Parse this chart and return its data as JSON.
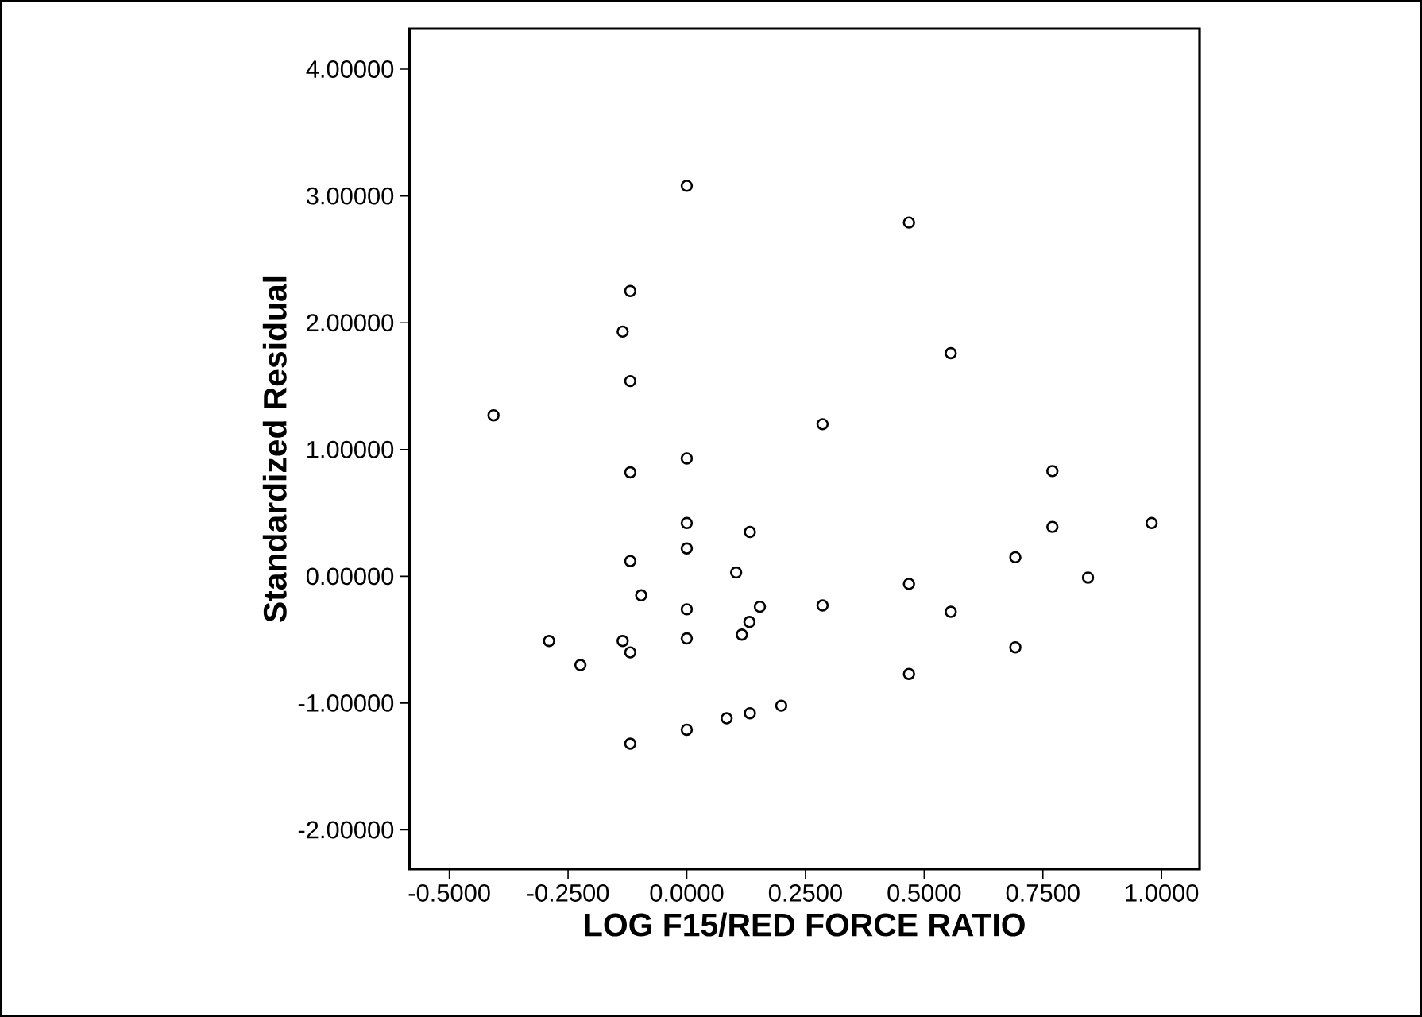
{
  "chart_data": {
    "type": "scatter",
    "xlabel": "LOG F15/RED FORCE RATIO",
    "ylabel": "Standardized Residual",
    "xlim": [
      -0.584,
      1.08
    ],
    "ylim": [
      -2.31,
      4.32
    ],
    "xticks": [
      {
        "value": -0.5,
        "label": "-0.5000"
      },
      {
        "value": -0.25,
        "label": "-0.2500"
      },
      {
        "value": 0,
        "label": "0.0000"
      },
      {
        "value": 0.25,
        "label": "0.2500"
      },
      {
        "value": 0.5,
        "label": "0.5000"
      },
      {
        "value": 0.75,
        "label": "0.7500"
      },
      {
        "value": 1,
        "label": "1.0000"
      }
    ],
    "yticks": [
      {
        "value": -2,
        "label": "-2.00000"
      },
      {
        "value": -1,
        "label": "-1.00000"
      },
      {
        "value": 0,
        "label": "0.00000"
      },
      {
        "value": 1,
        "label": "1.00000"
      },
      {
        "value": 2,
        "label": "2.00000"
      },
      {
        "value": 3,
        "label": "3.00000"
      },
      {
        "value": 4,
        "label": "4.00000"
      }
    ],
    "marker": "circle",
    "series": [
      {
        "color": "#000000",
        "x": [
          0.0,
          -0.119,
          -0.135,
          -0.119,
          -0.407,
          -0.119,
          0.0,
          0.0,
          0.133,
          0.0,
          -0.119,
          0.468,
          0.556,
          0.286,
          0.77,
          0.77,
          0.979,
          0.692,
          0.104,
          -0.096,
          0.0,
          0.154,
          0.132,
          0.116,
          0.0,
          -0.29,
          -0.135,
          -0.119,
          -0.224,
          0.199,
          0.133,
          0.084,
          0.0,
          -0.119,
          0.845,
          0.468,
          0.286,
          0.556,
          0.692,
          0.468
        ],
        "values": [
          3.08,
          2.25,
          1.93,
          1.54,
          1.27,
          0.82,
          0.93,
          0.42,
          0.35,
          0.22,
          0.12,
          2.79,
          1.76,
          1.2,
          0.83,
          0.39,
          0.42,
          0.15,
          0.03,
          -0.15,
          -0.26,
          -0.24,
          -0.36,
          -0.46,
          -0.49,
          -0.51,
          -0.51,
          -0.6,
          -0.7,
          -1.02,
          -1.08,
          -1.12,
          -1.21,
          -1.32,
          -0.01,
          -0.06,
          -0.23,
          -0.28,
          -0.56,
          -0.77
        ]
      }
    ]
  }
}
